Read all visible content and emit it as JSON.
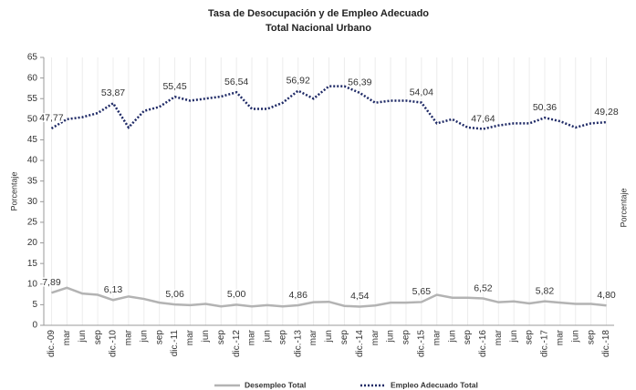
{
  "chart_data": {
    "type": "line",
    "title": "Tasa de Desocupación y de Empleo Adecuado",
    "subtitle": "Total Nacional Urbano",
    "y_label": "Porcentaje",
    "y2_label": "Porcentaje",
    "categories": [
      "dic.-09",
      "mar",
      "jun",
      "sep",
      "dic.-10",
      "mar",
      "jun",
      "sep",
      "dic.-11",
      "mar",
      "jun",
      "sep",
      "dic.-12",
      "mar",
      "jun",
      "sep",
      "dic.-13",
      "mar",
      "jun",
      "sep",
      "dic.-14",
      "mar",
      "jun",
      "sep",
      "dic.-15",
      "mar",
      "jun",
      "sep",
      "dic.-16",
      "mar",
      "jun",
      "sep",
      "dic.-17",
      "mar",
      "jun",
      "sep",
      "dic.-18"
    ],
    "ylim": [
      0,
      65
    ],
    "yticks": [
      0,
      5,
      10,
      15,
      20,
      25,
      30,
      35,
      40,
      45,
      50,
      55,
      60,
      65
    ],
    "grid": "x",
    "legend": "bottom",
    "series": [
      {
        "name": "Desempleo Total",
        "color": "#b3b3b3",
        "style": "solid",
        "values": [
          7.89,
          9.1,
          7.7,
          7.4,
          6.13,
          7.0,
          6.4,
          5.5,
          5.06,
          4.9,
          5.2,
          4.6,
          5.0,
          4.6,
          4.9,
          4.6,
          4.86,
          5.6,
          5.7,
          4.7,
          4.54,
          4.8,
          5.5,
          5.5,
          5.65,
          7.4,
          6.7,
          6.7,
          6.52,
          5.6,
          5.8,
          5.3,
          5.82,
          5.5,
          5.2,
          5.2,
          4.8
        ],
        "value_labels": [
          "7,89",
          null,
          null,
          null,
          "6,13",
          null,
          null,
          null,
          "5,06",
          null,
          null,
          null,
          "5,00",
          null,
          null,
          null,
          "4,86",
          null,
          null,
          null,
          "4,54",
          null,
          null,
          null,
          "5,65",
          null,
          null,
          null,
          "6,52",
          null,
          null,
          null,
          "5,82",
          null,
          null,
          null,
          "4,80"
        ]
      },
      {
        "name": "Empleo Adecuado Total",
        "color": "#1f2a66",
        "style": "dotted",
        "values": [
          47.77,
          50.0,
          50.5,
          51.5,
          53.87,
          48.0,
          52.0,
          53.0,
          55.45,
          54.5,
          55.0,
          55.5,
          56.54,
          52.5,
          52.5,
          54.0,
          56.92,
          55.0,
          58.0,
          58.0,
          56.39,
          54.0,
          54.5,
          54.5,
          54.04,
          49.0,
          50.0,
          48.0,
          47.64,
          48.5,
          49.0,
          49.0,
          50.36,
          49.5,
          48.0,
          49.0,
          49.28
        ],
        "value_labels": [
          "47,77",
          null,
          null,
          null,
          "53,87",
          null,
          null,
          null,
          "55,45",
          null,
          null,
          null,
          "56,54",
          null,
          null,
          null,
          "56,92",
          null,
          null,
          null,
          "56,39",
          null,
          null,
          null,
          "54,04",
          null,
          null,
          null,
          "47,64",
          null,
          null,
          null,
          "50,36",
          null,
          null,
          null,
          "49,28"
        ]
      }
    ]
  }
}
